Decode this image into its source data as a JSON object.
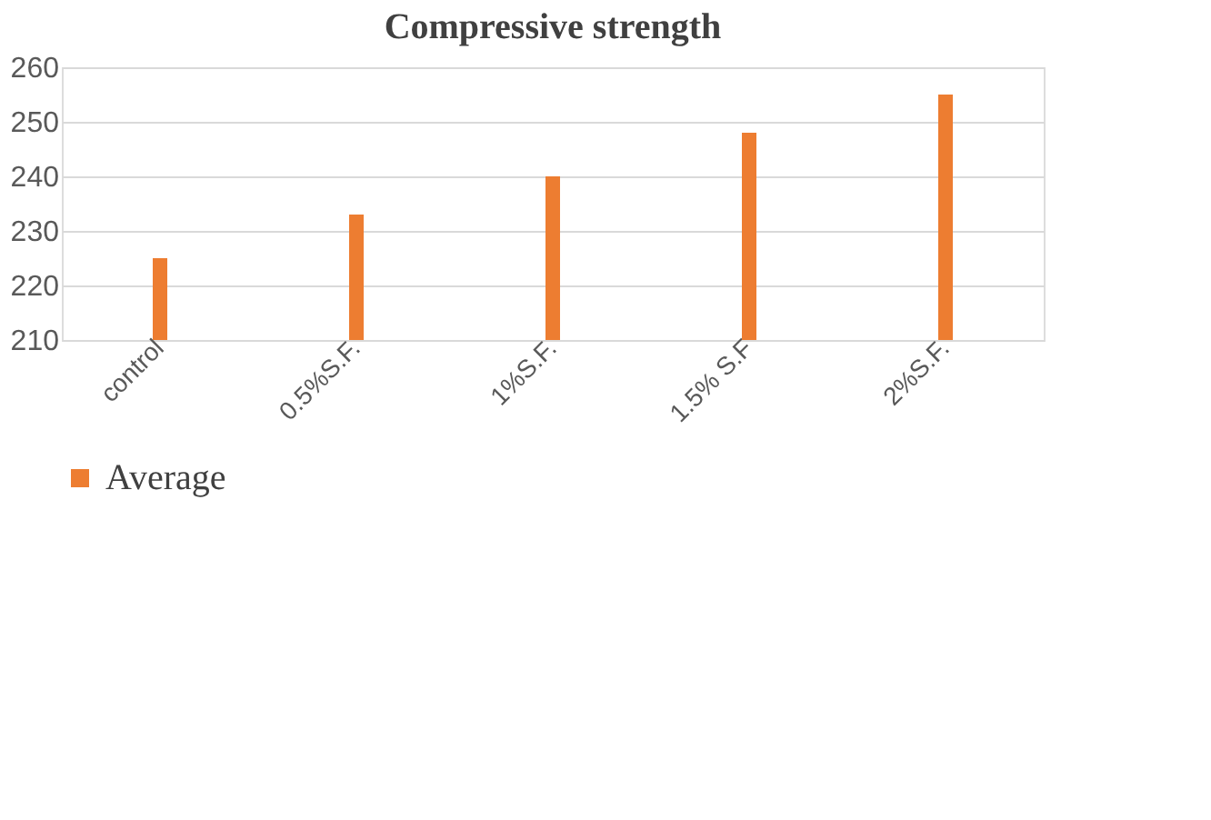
{
  "chart_data": {
    "type": "bar",
    "title": "Compressive strength",
    "categories": [
      "control",
      "0.5%S.F.",
      "1%S.F.",
      "1.5% S.F",
      "2%S.F."
    ],
    "series": [
      {
        "name": "Average",
        "color": "#ed7d31",
        "values": [
          225,
          233,
          240,
          248,
          255
        ]
      }
    ],
    "ylim": [
      210,
      260
    ],
    "yticks": [
      210,
      220,
      230,
      240,
      250,
      260
    ],
    "grid": "y",
    "legend": "bottom"
  }
}
